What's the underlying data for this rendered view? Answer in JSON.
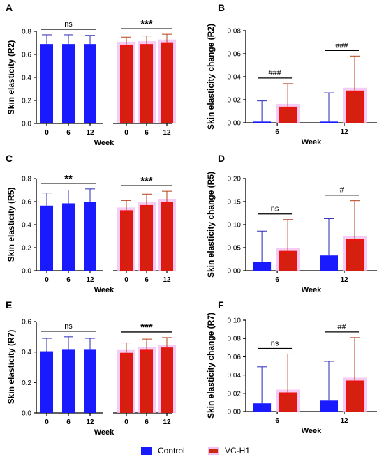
{
  "colors": {
    "control": "#1a1aff",
    "vc": "#e8140f",
    "vc_inner": "#c72a10",
    "vc_glow": "#f3bff0",
    "err_control": "#2a2ab8",
    "err_vc": "#b5401a"
  },
  "legend": {
    "control": "Control",
    "vc": "VC-H1"
  },
  "chart_data": [
    {
      "panel": "A",
      "type": "bar",
      "ylabel": "Skin elasticity (R2)",
      "xlabel": "Week",
      "ylim": [
        0,
        0.8
      ],
      "yticks": [
        0.0,
        0.2,
        0.4,
        0.6,
        0.8
      ],
      "tick_decimals": 1,
      "categories": [
        "0",
        "6",
        "12"
      ],
      "series": [
        {
          "name": "Control",
          "values": [
            0.69,
            0.69,
            0.69
          ],
          "errors": [
            0.08,
            0.08,
            0.075
          ]
        },
        {
          "name": "VC-H1",
          "values": [
            0.685,
            0.69,
            0.705
          ],
          "errors": [
            0.065,
            0.07,
            0.07
          ]
        }
      ],
      "annotations": [
        {
          "group": 0,
          "text": "ns"
        },
        {
          "group": 1,
          "text": "***"
        }
      ]
    },
    {
      "panel": "B",
      "type": "bar",
      "ylabel": "Skin elasticity change (R2)",
      "xlabel": "Week",
      "ylim": [
        0,
        0.08
      ],
      "yticks": [
        0.0,
        0.02,
        0.04,
        0.06,
        0.08
      ],
      "tick_decimals": 2,
      "categories": [
        "6",
        "12"
      ],
      "series": [
        {
          "name": "Control",
          "values": [
            0.001,
            0.001
          ],
          "errors": [
            0.018,
            0.025
          ]
        },
        {
          "name": "VC-H1",
          "values": [
            0.014,
            0.028
          ],
          "errors": [
            0.02,
            0.03
          ]
        }
      ],
      "annotations": [
        {
          "category": 0,
          "text": "###"
        },
        {
          "category": 1,
          "text": "###"
        }
      ]
    },
    {
      "panel": "C",
      "type": "bar",
      "ylabel": "Skin elasticity (R5)",
      "xlabel": "Week",
      "ylim": [
        0,
        0.8
      ],
      "yticks": [
        0.0,
        0.2,
        0.4,
        0.6,
        0.8
      ],
      "tick_decimals": 1,
      "categories": [
        "0",
        "6",
        "12"
      ],
      "series": [
        {
          "name": "Control",
          "values": [
            0.565,
            0.585,
            0.595
          ],
          "errors": [
            0.11,
            0.115,
            0.115
          ]
        },
        {
          "name": "VC-H1",
          "values": [
            0.525,
            0.57,
            0.6
          ],
          "errors": [
            0.085,
            0.095,
            0.09
          ]
        }
      ],
      "annotations": [
        {
          "group": 0,
          "text": "**"
        },
        {
          "group": 1,
          "text": "***"
        }
      ]
    },
    {
      "panel": "D",
      "type": "bar",
      "ylabel": "Skin elasticity change (R5)",
      "xlabel": "Week",
      "ylim": [
        0,
        0.2
      ],
      "yticks": [
        0.0,
        0.05,
        0.1,
        0.15,
        0.2
      ],
      "tick_decimals": 2,
      "categories": [
        "6",
        "12"
      ],
      "series": [
        {
          "name": "Control",
          "values": [
            0.019,
            0.033
          ],
          "errors": [
            0.067,
            0.08
          ]
        },
        {
          "name": "VC-H1",
          "values": [
            0.043,
            0.069
          ],
          "errors": [
            0.068,
            0.083
          ]
        }
      ],
      "annotations": [
        {
          "category": 0,
          "text": "ns"
        },
        {
          "category": 1,
          "text": "#"
        }
      ]
    },
    {
      "panel": "E",
      "type": "bar",
      "ylabel": "Skin elasticity (R7)",
      "xlabel": "Week",
      "ylim": [
        0,
        0.6
      ],
      "yticks": [
        0.0,
        0.2,
        0.4,
        0.6
      ],
      "tick_decimals": 1,
      "categories": [
        "0",
        "6",
        "12"
      ],
      "series": [
        {
          "name": "Control",
          "values": [
            0.405,
            0.415,
            0.415
          ],
          "errors": [
            0.085,
            0.085,
            0.075
          ]
        },
        {
          "name": "VC-H1",
          "values": [
            0.395,
            0.415,
            0.43
          ],
          "errors": [
            0.065,
            0.07,
            0.065
          ]
        }
      ],
      "annotations": [
        {
          "group": 0,
          "text": "ns"
        },
        {
          "group": 1,
          "text": "***"
        }
      ]
    },
    {
      "panel": "F",
      "type": "bar",
      "ylabel": "Skin elasticity change (R7)",
      "xlabel": "Week",
      "ylim": [
        0,
        0.1
      ],
      "yticks": [
        0.0,
        0.02,
        0.04,
        0.06,
        0.08,
        0.1
      ],
      "tick_decimals": 2,
      "categories": [
        "6",
        "12"
      ],
      "series": [
        {
          "name": "Control",
          "values": [
            0.009,
            0.012
          ],
          "errors": [
            0.04,
            0.043
          ]
        },
        {
          "name": "VC-H1",
          "values": [
            0.021,
            0.034
          ],
          "errors": [
            0.042,
            0.047
          ]
        }
      ],
      "annotations": [
        {
          "category": 0,
          "text": "ns"
        },
        {
          "category": 1,
          "text": "##"
        }
      ]
    }
  ]
}
